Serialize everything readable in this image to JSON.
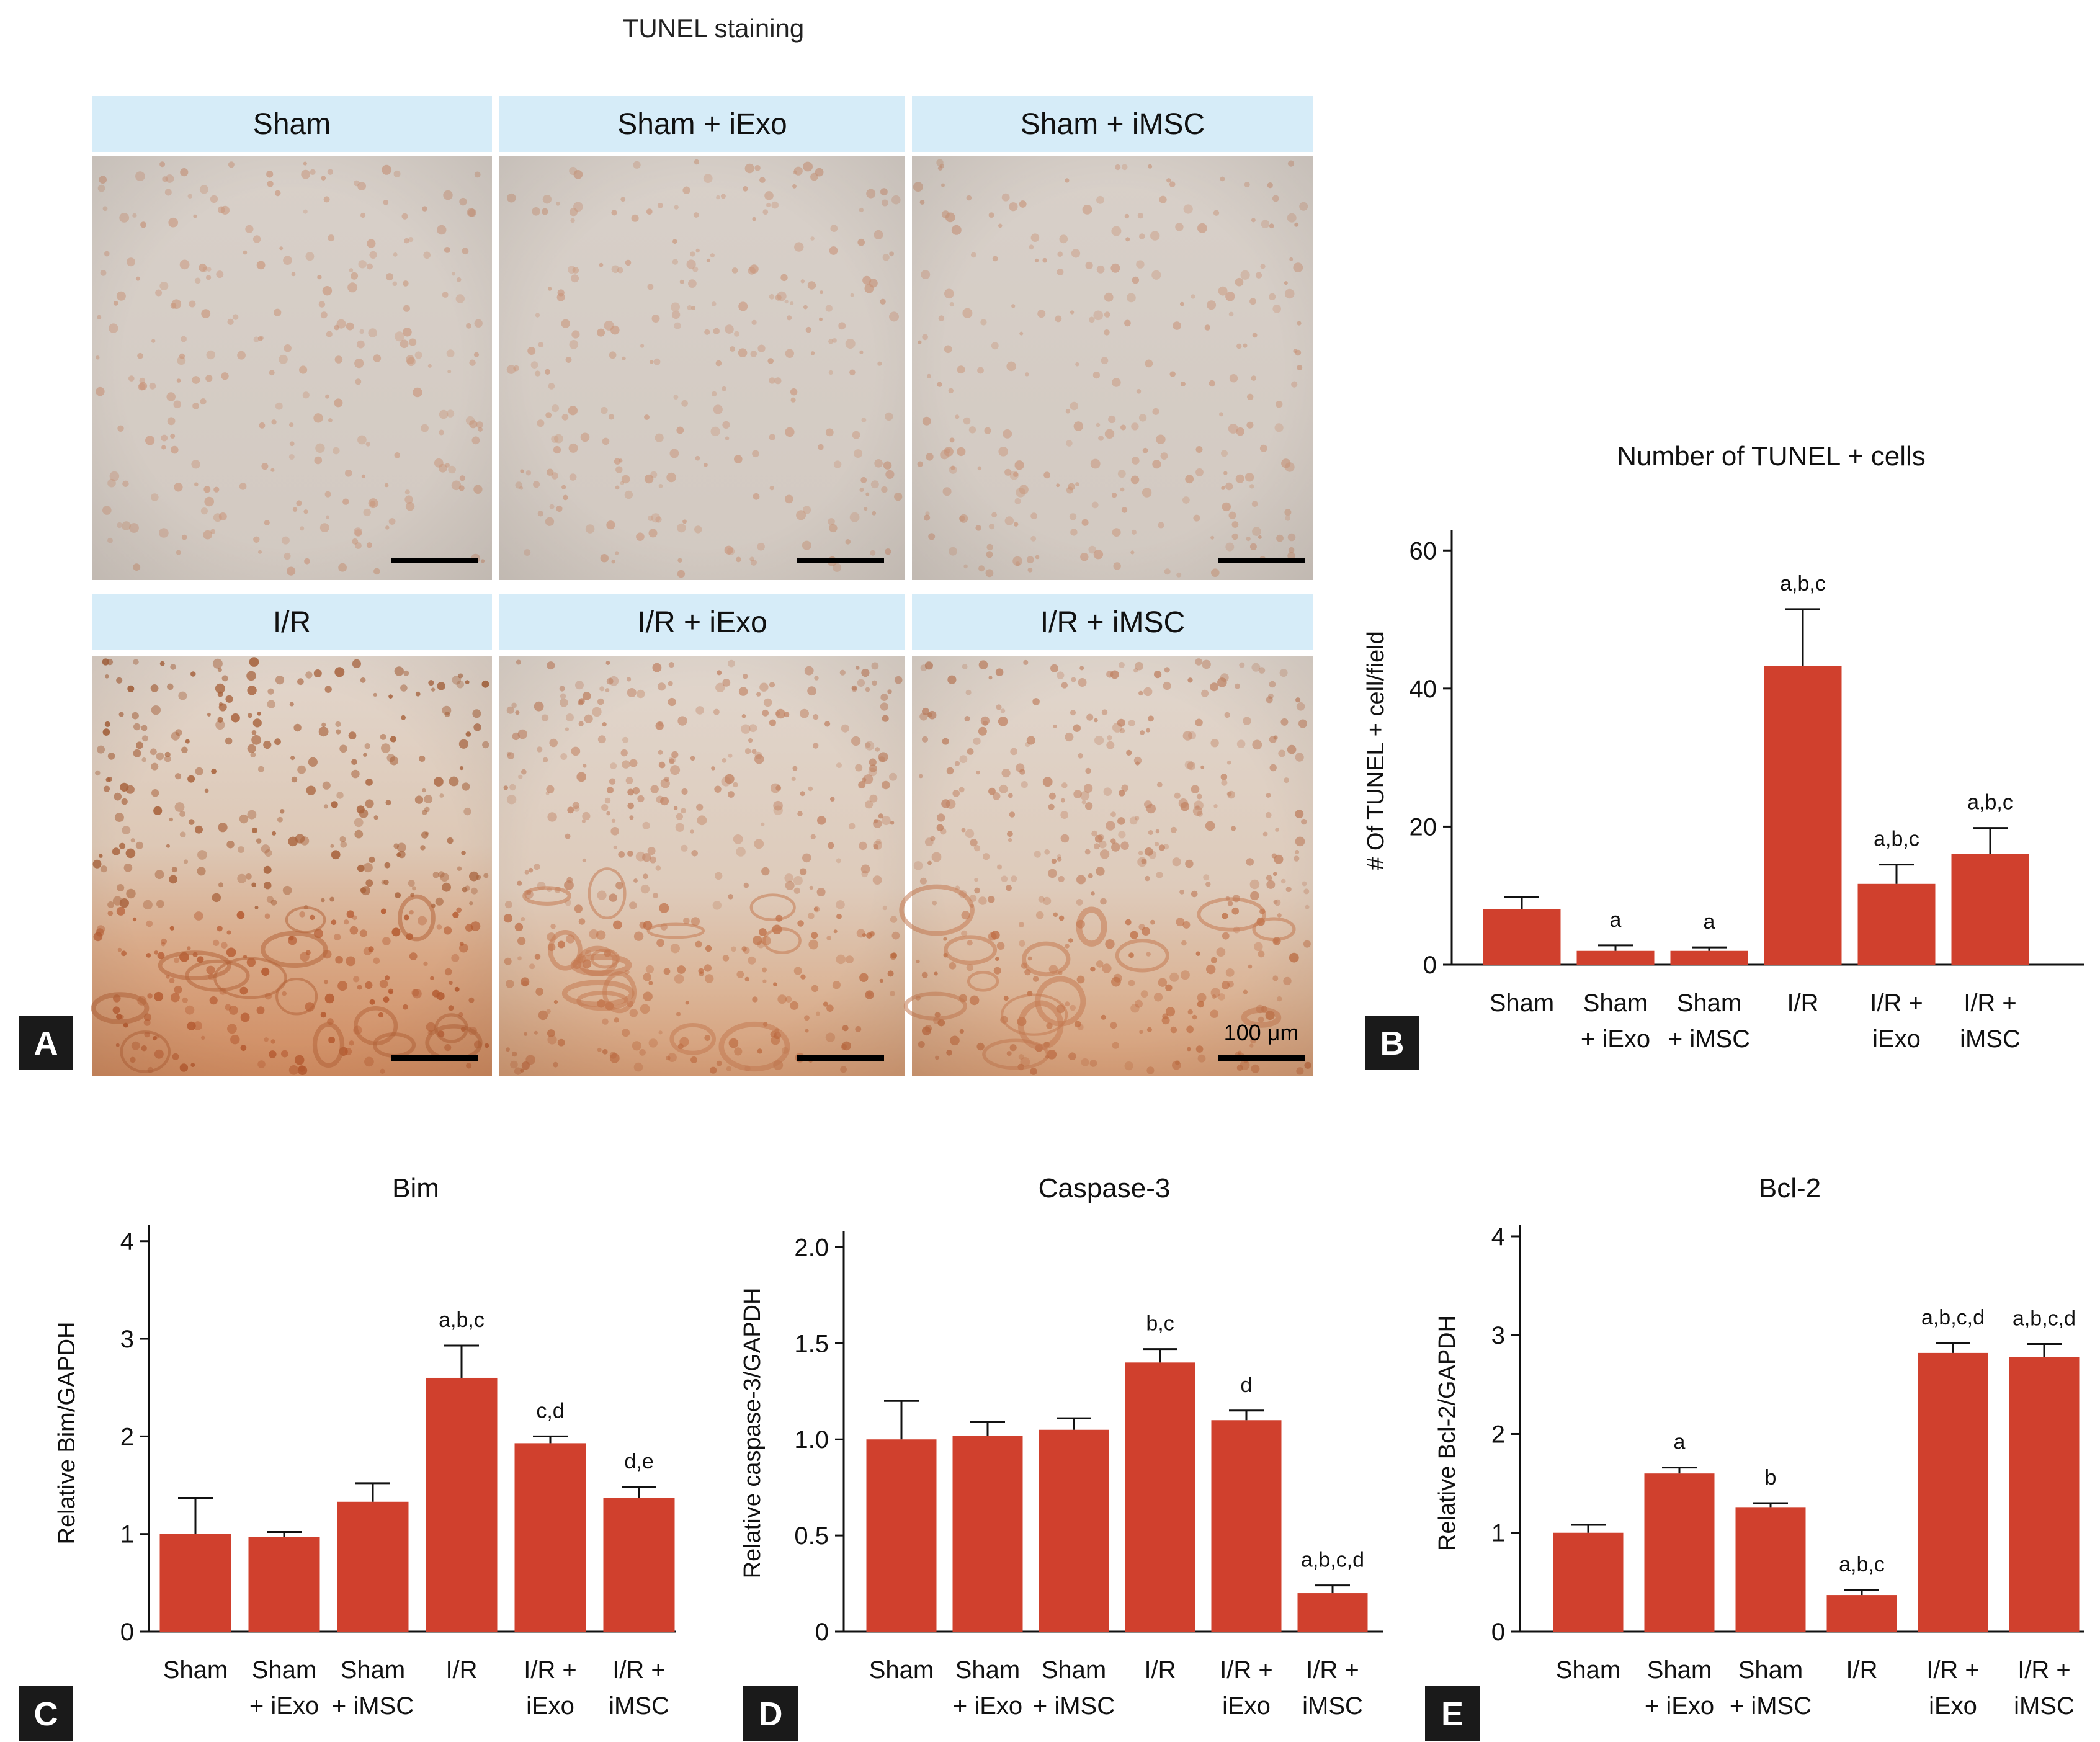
{
  "figure": {
    "panel_a_title": "TUNEL staining",
    "panel_letters": [
      "A",
      "B",
      "C",
      "D",
      "E"
    ],
    "scale_bar_label": "100 μm",
    "micrographs": [
      {
        "label": "Sham",
        "tone": "light"
      },
      {
        "label": "Sham + iExo",
        "tone": "light"
      },
      {
        "label": "Sham + iMSC",
        "tone": "light"
      },
      {
        "label": "I/R",
        "tone": "dark"
      },
      {
        "label": "I/R + iExo",
        "tone": "medium"
      },
      {
        "label": "I/R + iMSC",
        "tone": "medium"
      }
    ],
    "colors": {
      "bar": "#d0402d",
      "header": "#d6ecf8",
      "stain_light": "#cfc7c0",
      "stain_dark": "#cf8e68"
    }
  },
  "chart_data": [
    {
      "panel": "B",
      "type": "bar",
      "title": "Number of TUNEL + cells",
      "ylabel": "# Of TUNEL + cell/field",
      "categories": [
        [
          "Sham"
        ],
        [
          "Sham",
          "+ iExo"
        ],
        [
          "Sham",
          "+ iMSC"
        ],
        [
          "I/R"
        ],
        [
          "I/R +",
          "iExo"
        ],
        [
          "I/R +",
          "iMSC"
        ]
      ],
      "values": [
        8,
        2,
        2,
        43.3,
        11.7,
        16
      ],
      "errors": [
        1.8,
        0.8,
        0.5,
        8.2,
        2.8,
        3.8
      ],
      "annotations": [
        "",
        "a",
        "a",
        "a,b,c",
        "a,b,c",
        "a,b,c"
      ],
      "ylim": [
        0,
        62
      ],
      "yticks": [
        "0",
        "20",
        "40",
        "60"
      ],
      "ytick_values": [
        0,
        20,
        40,
        60
      ]
    },
    {
      "panel": "C",
      "type": "bar",
      "title": "Bim",
      "ylabel": "Relative Bim/GAPDH",
      "categories": [
        [
          "Sham"
        ],
        [
          "Sham",
          "+ iExo"
        ],
        [
          "Sham",
          "+ iMSC"
        ],
        [
          "I/R"
        ],
        [
          "I/R +",
          "iExo"
        ],
        [
          "I/R +",
          "iMSC"
        ]
      ],
      "values": [
        1.0,
        0.97,
        1.33,
        2.6,
        1.93,
        1.37
      ],
      "errors": [
        0.37,
        0.05,
        0.19,
        0.33,
        0.07,
        0.11
      ],
      "annotations": [
        "",
        "",
        "",
        "a,b,c",
        "c,d",
        "d,e"
      ],
      "ylim": [
        0,
        4.1
      ],
      "yticks": [
        "0",
        "1",
        "2",
        "3",
        "4"
      ],
      "ytick_values": [
        0,
        1,
        2,
        3,
        4
      ]
    },
    {
      "panel": "D",
      "type": "bar",
      "title": "Caspase-3",
      "ylabel": "Relative caspase-3/GAPDH",
      "categories": [
        [
          "Sham"
        ],
        [
          "Sham",
          "+ iExo"
        ],
        [
          "Sham",
          "+ iMSC"
        ],
        [
          "I/R"
        ],
        [
          "I/R +",
          "iExo"
        ],
        [
          "I/R +",
          "iMSC"
        ]
      ],
      "values": [
        1.0,
        1.02,
        1.05,
        1.4,
        1.1,
        0.2
      ],
      "errors": [
        0.2,
        0.07,
        0.06,
        0.07,
        0.05,
        0.04
      ],
      "annotations": [
        "",
        "",
        "",
        "b,c",
        "d",
        "a,b,c,d"
      ],
      "ylim": [
        0,
        2.05
      ],
      "yticks": [
        "0",
        "0.5",
        "1.0",
        "1.5",
        "2.0"
      ],
      "ytick_values": [
        0,
        0.5,
        1.0,
        1.5,
        2.0
      ]
    },
    {
      "panel": "E",
      "type": "bar",
      "title": "Bcl-2",
      "ylabel": "Relative Bcl-2/GAPDH",
      "categories": [
        [
          "Sham"
        ],
        [
          "Sham",
          "+ iExo"
        ],
        [
          "Sham",
          "+ iMSC"
        ],
        [
          "I/R"
        ],
        [
          "I/R +",
          "iExo"
        ],
        [
          "I/R +",
          "iMSC"
        ]
      ],
      "values": [
        1.0,
        1.6,
        1.26,
        0.37,
        2.82,
        2.78
      ],
      "errors": [
        0.08,
        0.06,
        0.04,
        0.05,
        0.1,
        0.13
      ],
      "annotations": [
        "",
        "a",
        "b",
        "a,b,c",
        "a,b,c,d",
        "a,b,c,d"
      ],
      "ylim": [
        0,
        4.05
      ],
      "yticks": [
        "0",
        "1",
        "2",
        "3",
        "4"
      ],
      "ytick_values": [
        0,
        1,
        2,
        3,
        4
      ]
    }
  ]
}
